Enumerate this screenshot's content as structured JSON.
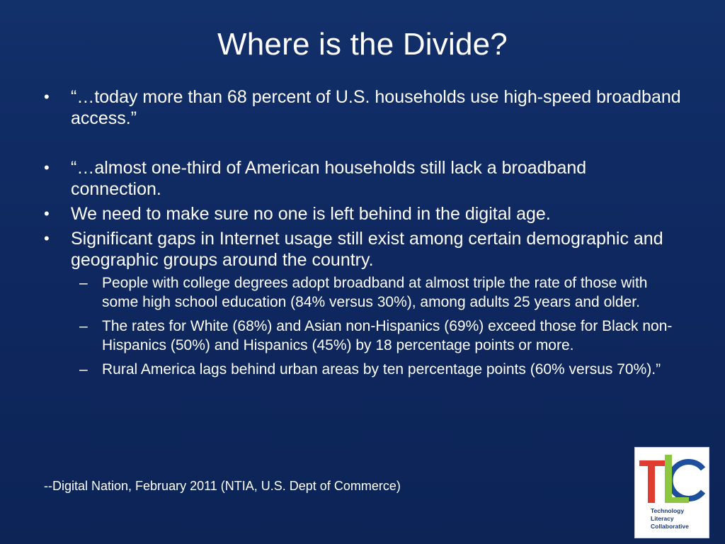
{
  "slide": {
    "title": "Where is the Divide?",
    "bullets": [
      {
        "marker": "•",
        "text": "“…today more than 68 percent of U.S. households use high-speed broadband access.”"
      },
      {
        "marker": "•",
        "text": "“…almost one-third of American households still lack a broadband connection."
      },
      {
        "marker": "•",
        "text": "We need to make sure no one is left behind in the digital age."
      },
      {
        "marker": "•",
        "text": "Significant gaps in Internet usage still exist among certain demographic and geographic groups around the country."
      }
    ],
    "sub_bullets": [
      {
        "marker": "–",
        "text": "People with college degrees adopt broadband at almost triple the rate of those with some high school education (84% versus 30%), among adults 25 years and older."
      },
      {
        "marker": "–",
        "text": "The rates for White (68%) and Asian non-Hispanics (69%) exceed those for Black non-Hispanics (50%) and Hispanics (45%) by 18 percentage points or more."
      },
      {
        "marker": "–",
        "text": "Rural America lags behind urban areas by ten percentage points (60% versus 70%).”"
      }
    ],
    "source": "--Digital Nation, February 2011 (NTIA, U.S. Dept of Commerce)"
  },
  "logo": {
    "letters": [
      "T",
      "L",
      "C"
    ],
    "lines": [
      "Technology",
      "Literacy",
      "Collaborative"
    ],
    "colors": {
      "t": "#e03c31",
      "l": "#8dc63f",
      "c": "#1e4f9c",
      "text": "#1b3a78"
    }
  },
  "colors": {
    "background": "#0f2860",
    "text": "#ffffff"
  }
}
